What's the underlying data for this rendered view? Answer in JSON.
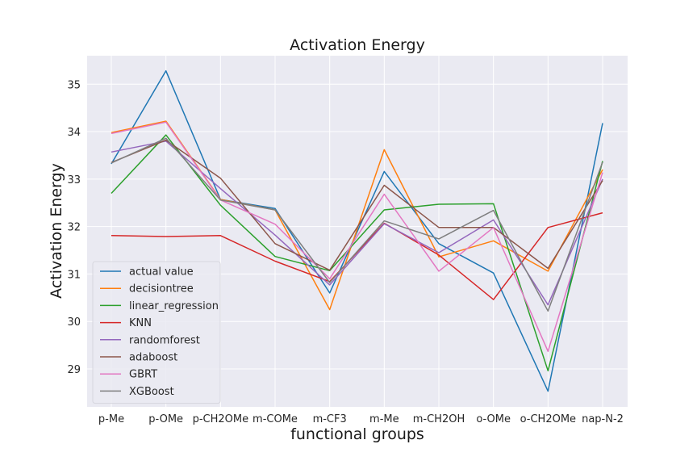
{
  "chart_data": {
    "type": "line",
    "title": "Activation Energy",
    "xlabel": "functional groups",
    "ylabel": "Activation Energy",
    "categories": [
      "p-Me",
      "p-OMe",
      "p-CH2OMe",
      "m-COMe",
      "m-CF3",
      "m-Me",
      "m-CH2OH",
      "o-OMe",
      "o-CH2OMe",
      "nap-N-2"
    ],
    "ylim": [
      28.2,
      35.6
    ],
    "yticks": [
      29,
      30,
      31,
      32,
      33,
      34,
      35
    ],
    "grid": true,
    "legend_position": "lower-left",
    "background": "#eaeaf2",
    "series": [
      {
        "name": "actual value",
        "color": "#1f77b4",
        "values": [
          33.32,
          35.28,
          32.57,
          32.38,
          30.6,
          33.16,
          31.64,
          31.02,
          28.53,
          34.18
        ]
      },
      {
        "name": "decisiontree",
        "color": "#ff7f0e",
        "values": [
          33.98,
          34.22,
          32.57,
          32.35,
          30.25,
          33.62,
          31.36,
          31.7,
          31.06,
          33.2
        ]
      },
      {
        "name": "linear_regression",
        "color": "#2ca02c",
        "values": [
          32.7,
          33.93,
          32.45,
          31.37,
          31.07,
          32.35,
          32.47,
          32.48,
          28.96,
          33.38
        ]
      },
      {
        "name": "KNN",
        "color": "#d62728",
        "values": [
          31.81,
          31.79,
          31.81,
          31.27,
          30.84,
          32.07,
          31.4,
          30.46,
          31.98,
          32.29
        ]
      },
      {
        "name": "randomforest",
        "color": "#9467bd",
        "values": [
          33.57,
          33.8,
          32.8,
          31.82,
          30.77,
          32.06,
          31.45,
          32.14,
          30.35,
          33.0
        ]
      },
      {
        "name": "adaboost",
        "color": "#8c564b",
        "values": [
          33.35,
          33.82,
          33.02,
          31.64,
          31.08,
          32.87,
          31.98,
          31.98,
          31.12,
          32.97
        ]
      },
      {
        "name": "GBRT",
        "color": "#e377c2",
        "values": [
          33.96,
          34.2,
          32.56,
          32.05,
          30.9,
          32.68,
          31.06,
          31.98,
          29.37,
          33.14
        ]
      },
      {
        "name": "XGBoost",
        "color": "#7f7f7f",
        "values": [
          33.34,
          33.86,
          32.56,
          32.35,
          30.82,
          32.12,
          31.74,
          32.34,
          30.22,
          33.36
        ]
      }
    ]
  }
}
